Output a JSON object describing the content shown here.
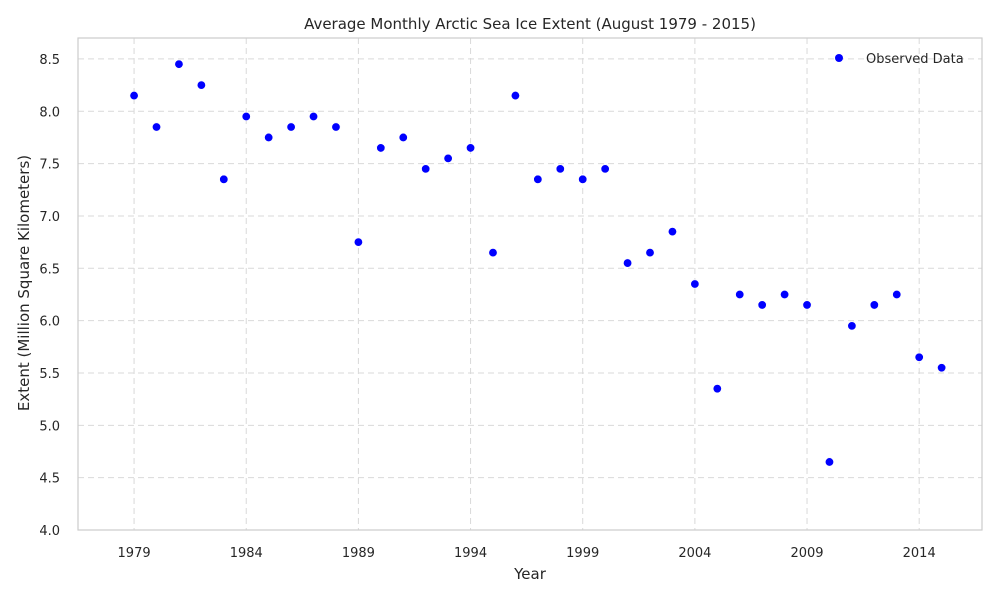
{
  "chart_data": {
    "type": "scatter",
    "title": "Average Monthly Arctic Sea Ice Extent (August 1979 - 2015)",
    "xlabel": "Year",
    "ylabel": "Extent (Million Square Kilometers)",
    "xlim": [
      1976.5,
      2016.8
    ],
    "ylim": [
      4.0,
      8.7
    ],
    "x_ticks": [
      1979,
      1984,
      1989,
      1994,
      1999,
      2004,
      2009,
      2014
    ],
    "y_ticks": [
      4.0,
      4.5,
      5.0,
      5.5,
      6.0,
      6.5,
      7.0,
      7.5,
      8.0,
      8.5
    ],
    "y_tick_labels": [
      "4.0",
      "4.5",
      "5.0",
      "5.5",
      "6.0",
      "6.5",
      "7.0",
      "7.5",
      "8.0",
      "8.5"
    ],
    "grid": true,
    "legend_position": "top-right",
    "series": [
      {
        "name": "Observed Data",
        "color": "#0000ff",
        "x": [
          1979,
          1980,
          1981,
          1982,
          1983,
          1984,
          1985,
          1986,
          1987,
          1988,
          1989,
          1990,
          1991,
          1992,
          1993,
          1994,
          1995,
          1996,
          1997,
          1998,
          1999,
          2000,
          2001,
          2002,
          2003,
          2004,
          2005,
          2006,
          2007,
          2008,
          2009,
          2010,
          2011,
          2012,
          2013,
          2014,
          2015
        ],
        "y": [
          8.15,
          7.85,
          8.45,
          8.25,
          7.35,
          7.95,
          7.75,
          7.85,
          7.95,
          7.85,
          6.75,
          7.65,
          7.75,
          7.45,
          7.55,
          7.65,
          6.65,
          8.15,
          7.35,
          7.45,
          7.35,
          7.45,
          6.55,
          6.65,
          6.85,
          6.35,
          5.35,
          6.25,
          6.15,
          6.25,
          6.15,
          4.65,
          5.95,
          6.15,
          6.25,
          5.65,
          5.55
        ]
      }
    ]
  }
}
